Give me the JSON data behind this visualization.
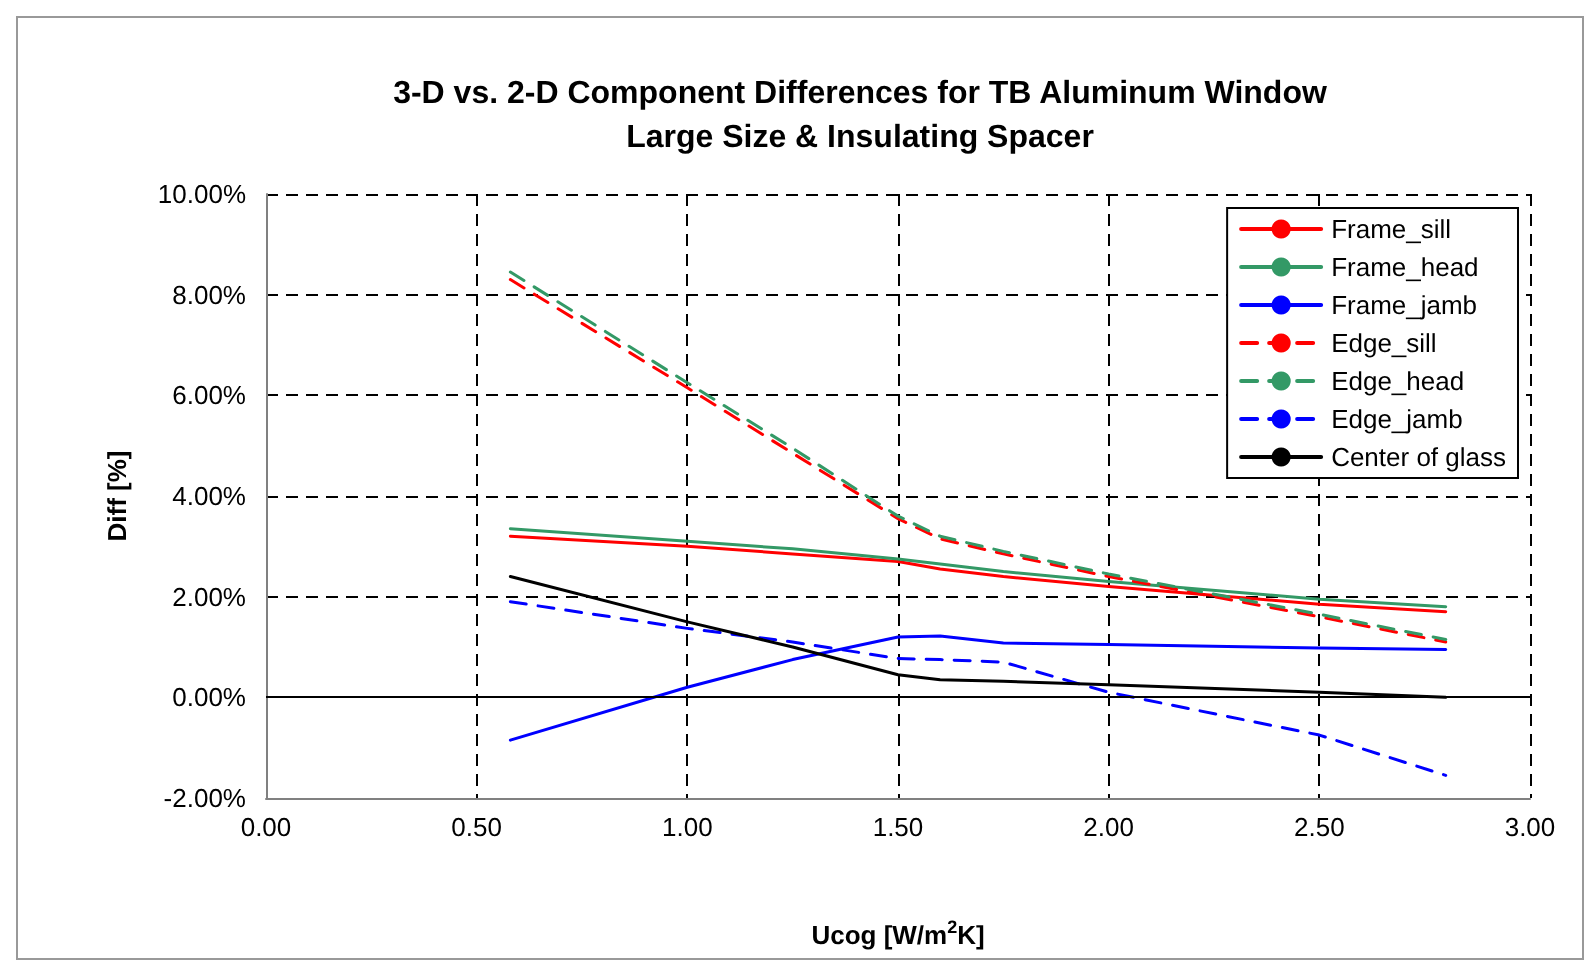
{
  "chart_data": {
    "type": "line",
    "title": "3-D vs. 2-D Component Differences for TB Aluminum Window\nLarge Size & Insulating Spacer",
    "xlabel": "Ucog [W/m$^{2}$K]",
    "ylabel": "Diff [%]",
    "x": [
      0.58,
      1.0,
      1.25,
      1.5,
      1.6,
      1.75,
      2.0,
      2.5,
      2.8
    ],
    "series": [
      {
        "name": "Frame_sill",
        "color": "#ff0000",
        "line_style": "solid",
        "values": [
          3.2,
          3.0,
          2.85,
          2.7,
          2.55,
          2.4,
          2.2,
          1.85,
          1.7
        ]
      },
      {
        "name": "Frame_head",
        "color": "#339966",
        "line_style": "solid",
        "values": [
          3.35,
          3.1,
          2.95,
          2.75,
          2.65,
          2.5,
          2.3,
          1.95,
          1.8
        ]
      },
      {
        "name": "Frame_jamb",
        "color": "#0000ff",
        "line_style": "solid",
        "values": [
          -0.85,
          0.2,
          0.75,
          1.2,
          1.22,
          1.08,
          1.05,
          0.98,
          0.95
        ]
      },
      {
        "name": "Edge_sill",
        "color": "#ff0000",
        "line_style": "dashed",
        "values": [
          8.3,
          6.15,
          4.85,
          3.55,
          3.15,
          2.85,
          2.4,
          1.6,
          1.1
        ]
      },
      {
        "name": "Edge_head",
        "color": "#339966",
        "line_style": "dashed",
        "values": [
          8.45,
          6.25,
          4.95,
          3.6,
          3.2,
          2.9,
          2.45,
          1.65,
          1.15
        ]
      },
      {
        "name": "Edge_jamb",
        "color": "#0000ff",
        "line_style": "dashed",
        "values": [
          1.9,
          1.37,
          1.1,
          0.77,
          0.75,
          0.7,
          0.1,
          -0.75,
          -1.55
        ]
      },
      {
        "name": "Center of glass",
        "color": "#000000",
        "line_style": "solid",
        "values": [
          2.4,
          1.5,
          1.0,
          0.45,
          0.35,
          0.32,
          0.25,
          0.1,
          0.0
        ]
      }
    ],
    "xlim": [
      0,
      3
    ],
    "xticks": [
      {
        "value": 0,
        "label": "0.00"
      },
      {
        "value": 0.5,
        "label": "0.50"
      },
      {
        "value": 1,
        "label": "1.00"
      },
      {
        "value": 1.5,
        "label": "1.50"
      },
      {
        "value": 2,
        "label": "2.00"
      },
      {
        "value": 2.5,
        "label": "2.50"
      },
      {
        "value": 3,
        "label": "3.00"
      }
    ],
    "ylim": [
      -2,
      10
    ],
    "yticks": [
      {
        "value": -2,
        "label": "-2.00%"
      },
      {
        "value": 0,
        "label": "0.00%"
      },
      {
        "value": 2,
        "label": "2.00%"
      },
      {
        "value": 4,
        "label": "4.00%"
      },
      {
        "value": 6,
        "label": "6.00%"
      },
      {
        "value": 8,
        "label": "8.00%"
      },
      {
        "value": 10,
        "label": "10.00%"
      }
    ],
    "grid": true,
    "legend": "top right",
    "marker": "none"
  }
}
